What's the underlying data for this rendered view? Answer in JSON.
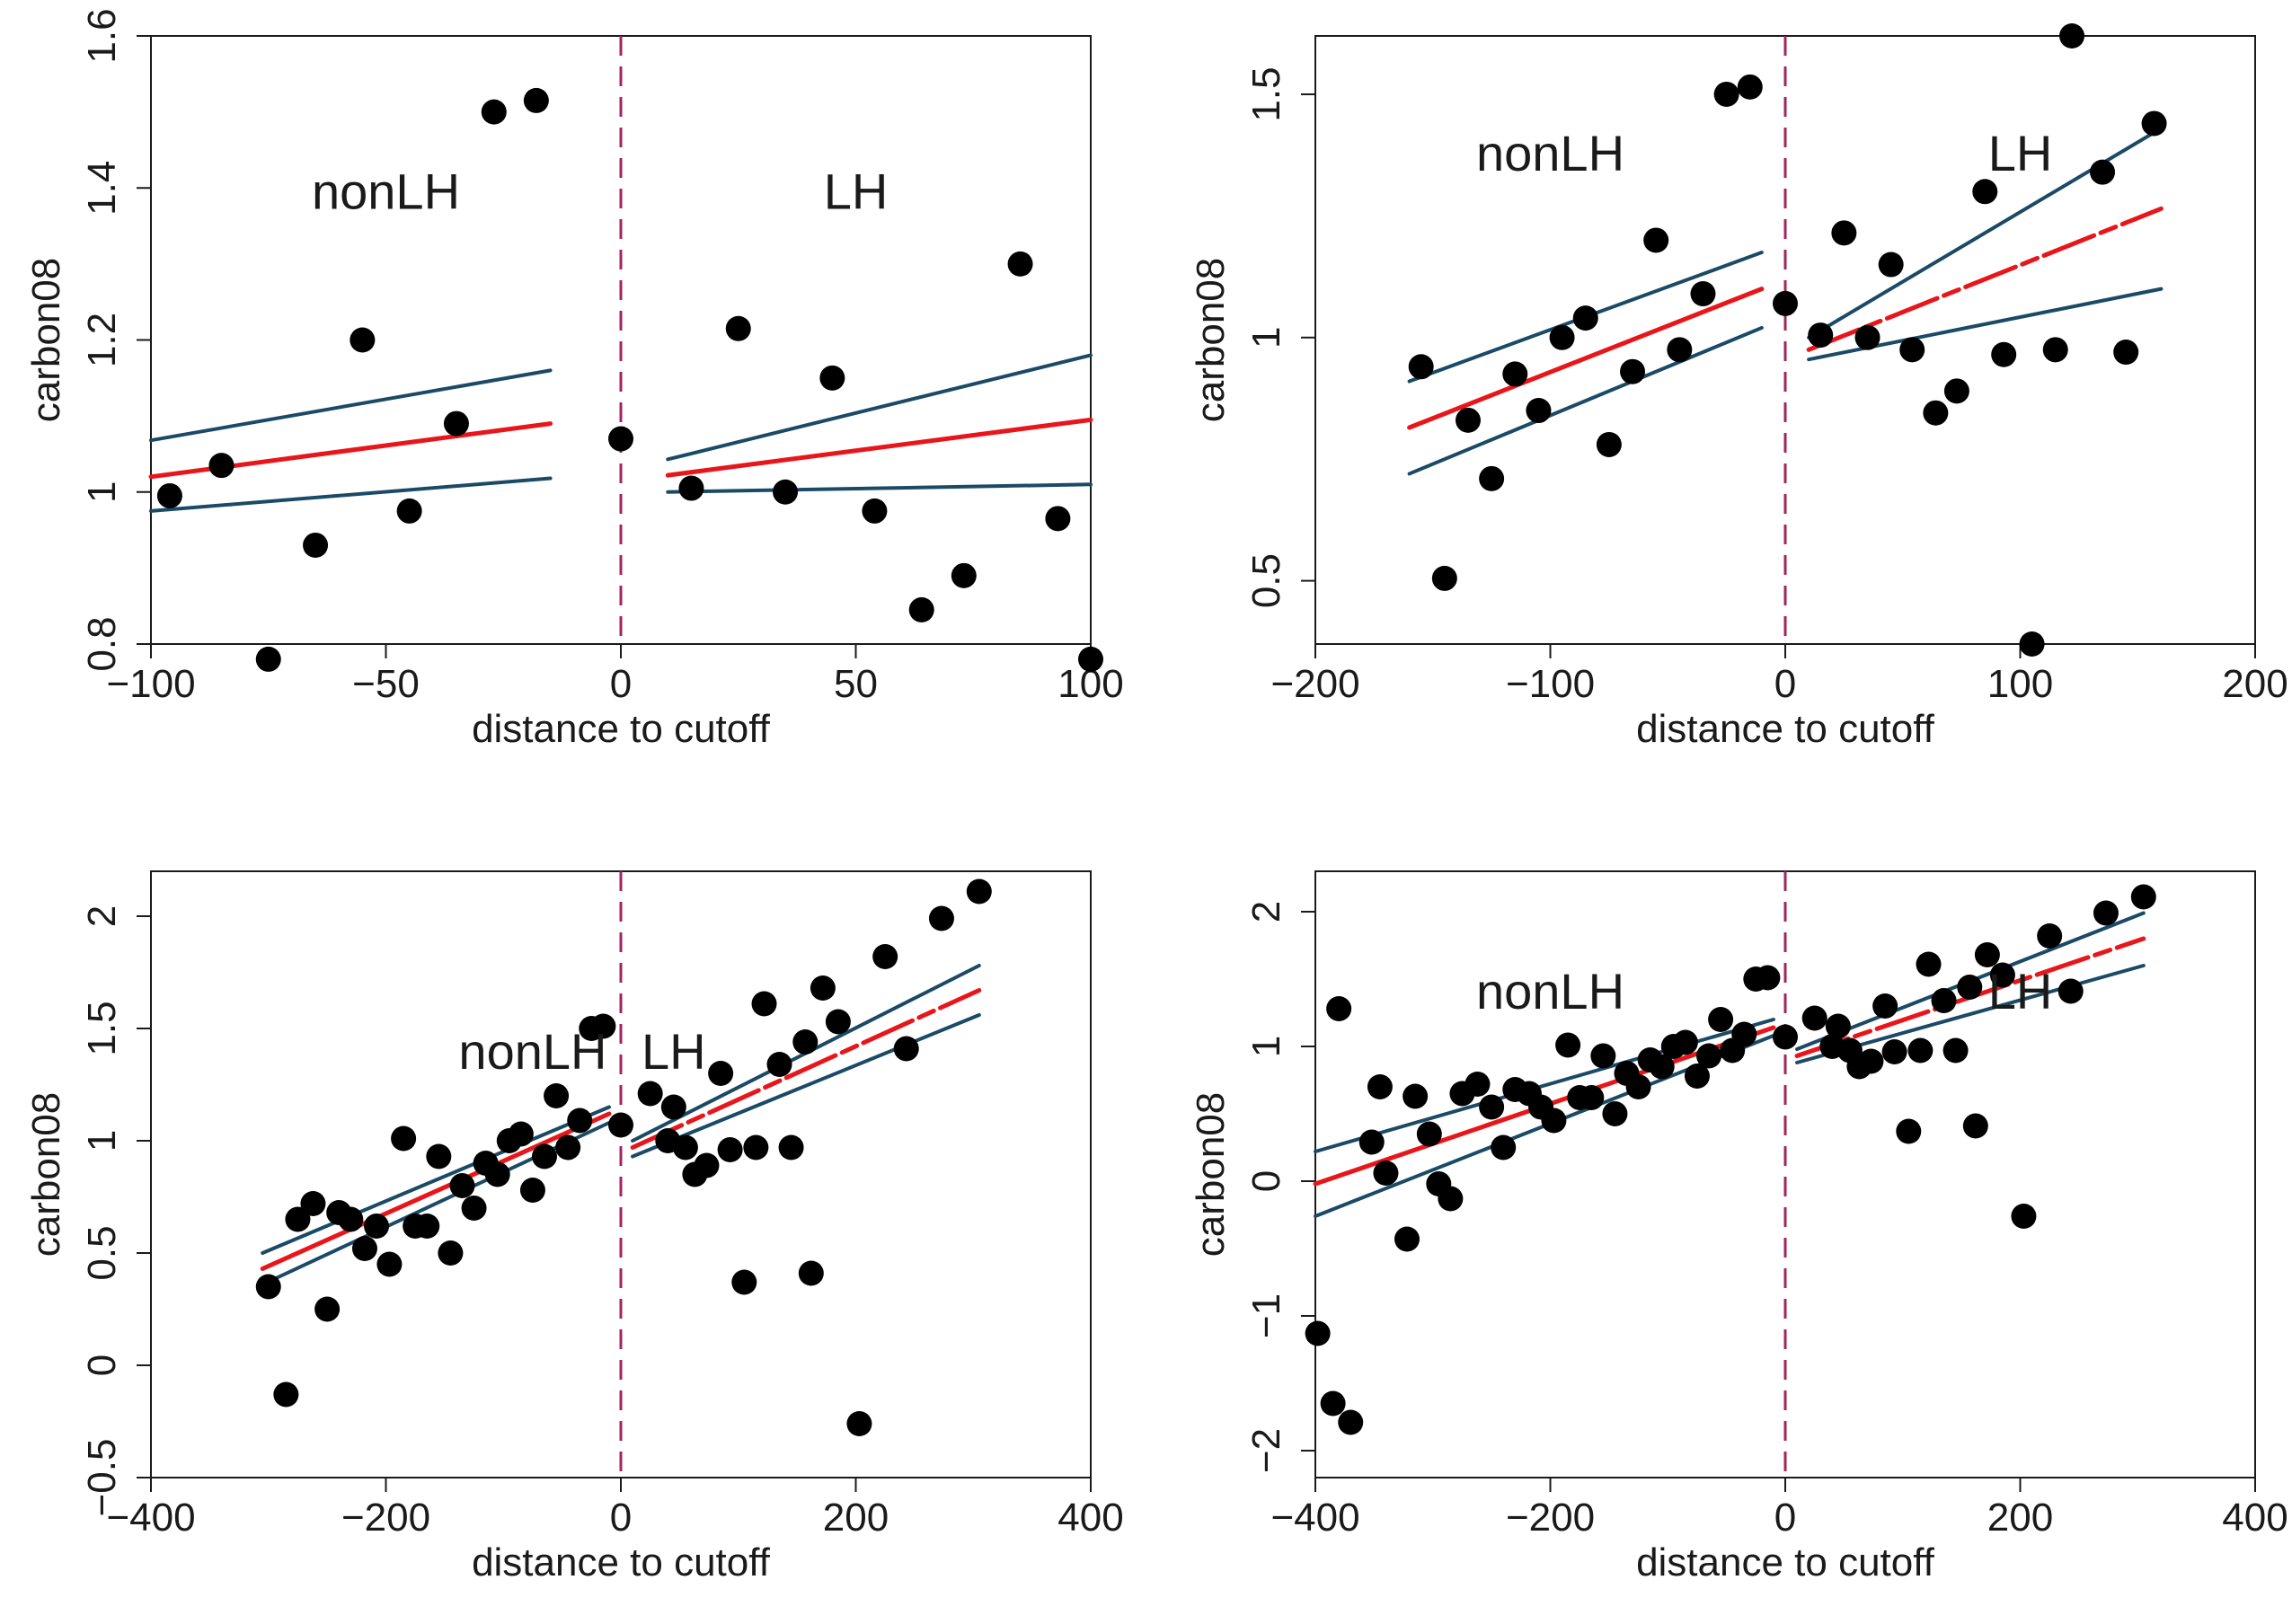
{
  "colors": {
    "fit": "#e8161b",
    "band": "#1b4a66",
    "cutoff": "#a3245a",
    "point": "#000000",
    "axis": "#1a1a1a"
  },
  "chart_data": [
    {
      "type": "scatter",
      "xlabel": "distance to cutoff",
      "ylabel": "carbon08",
      "xlim": [
        -100,
        100
      ],
      "ylim": [
        0.8,
        1.6
      ],
      "xticks": [
        -100,
        -50,
        0,
        50,
        100
      ],
      "xtick_labels": [
        "−100",
        "−50",
        "0",
        "50",
        "100"
      ],
      "yticks": [
        0.8,
        1.0,
        1.2,
        1.4,
        1.6
      ],
      "ytick_labels": [
        "0.8",
        "1",
        "1.2",
        "1.4",
        "1.6"
      ],
      "grid": false,
      "cutoff_x": 0,
      "annotations": [
        {
          "text": "nonLH",
          "x": -50,
          "y": 1.39
        },
        {
          "text": "LH",
          "x": 50,
          "y": 1.39
        }
      ],
      "points": [
        [
          -96,
          0.995
        ],
        [
          -85,
          1.035
        ],
        [
          -75,
          0.78
        ],
        [
          -65,
          0.93
        ],
        [
          -55,
          1.2
        ],
        [
          -45,
          0.975
        ],
        [
          -35,
          1.09
        ],
        [
          -27,
          1.5
        ],
        [
          -18,
          1.515
        ],
        [
          0,
          1.07
        ],
        [
          15,
          1.005
        ],
        [
          25,
          1.215
        ],
        [
          35,
          1.0
        ],
        [
          45,
          1.15
        ],
        [
          54,
          0.975
        ],
        [
          64,
          0.845
        ],
        [
          73,
          0.89
        ],
        [
          85,
          1.3
        ],
        [
          93,
          0.965
        ],
        [
          100,
          0.78
        ]
      ],
      "fits": [
        {
          "x": [
            -100,
            -15
          ],
          "fit": [
            1.02,
            1.09
          ],
          "upper": [
            1.068,
            1.16
          ],
          "lower": [
            0.975,
            1.018
          ]
        },
        {
          "x": [
            10,
            100
          ],
          "fit": [
            1.022,
            1.095
          ],
          "upper": [
            1.043,
            1.18
          ],
          "lower": [
            1.0,
            1.01
          ]
        }
      ]
    },
    {
      "type": "scatter",
      "xlabel": "distance to cutoff",
      "ylabel": "carbon08",
      "xlim": [
        -200,
        200
      ],
      "ylim": [
        0.37,
        1.62
      ],
      "xticks": [
        -200,
        -100,
        0,
        100,
        200
      ],
      "xtick_labels": [
        "−200",
        "−100",
        "0",
        "100",
        "200"
      ],
      "yticks": [
        0.5,
        1.0,
        1.5
      ],
      "ytick_labels": [
        "0.5",
        "1",
        "1.5"
      ],
      "grid": false,
      "cutoff_x": 0,
      "annotations": [
        {
          "text": "nonLH",
          "x": -100,
          "y": 1.37
        },
        {
          "text": "LH",
          "x": 100,
          "y": 1.37
        }
      ],
      "points": [
        [
          -155,
          0.94
        ],
        [
          -145,
          0.505
        ],
        [
          -135,
          0.83
        ],
        [
          -125,
          0.71
        ],
        [
          -115,
          0.925
        ],
        [
          -105,
          0.85
        ],
        [
          -95,
          1.0
        ],
        [
          -85,
          1.04
        ],
        [
          -75,
          0.78
        ],
        [
          -65,
          0.93
        ],
        [
          -55,
          1.2
        ],
        [
          -45,
          0.975
        ],
        [
          -35,
          1.09
        ],
        [
          -25,
          1.5
        ],
        [
          -15,
          1.515
        ],
        [
          0,
          1.07
        ],
        [
          15,
          1.005
        ],
        [
          25,
          1.215
        ],
        [
          35,
          1.0
        ],
        [
          45,
          1.15
        ],
        [
          54,
          0.975
        ],
        [
          64,
          0.845
        ],
        [
          73,
          0.89
        ],
        [
          85,
          1.3
        ],
        [
          93,
          0.965
        ],
        [
          105,
          0.37
        ],
        [
          115,
          0.975
        ],
        [
          122,
          1.62
        ],
        [
          135,
          1.34
        ],
        [
          145,
          0.97
        ],
        [
          157,
          1.44
        ]
      ],
      "fits": [
        {
          "x": [
            -160,
            -10
          ],
          "fit": [
            0.815,
            1.1
          ],
          "upper": [
            0.91,
            1.175
          ],
          "lower": [
            0.72,
            1.02
          ]
        },
        {
          "x": [
            10,
            160
          ],
          "fit": [
            0.975,
            1.265
          ],
          "upper": [
            1.0,
            1.43
          ],
          "lower": [
            0.955,
            1.1
          ]
        }
      ]
    },
    {
      "type": "scatter",
      "xlabel": "distance to cutoff",
      "ylabel": "carbon08",
      "xlim": [
        -400,
        400
      ],
      "ylim": [
        -0.5,
        2.2
      ],
      "xticks": [
        -400,
        -200,
        0,
        200,
        400
      ],
      "xtick_labels": [
        "−400",
        "−200",
        "0",
        "200",
        "400"
      ],
      "yticks": [
        -0.5,
        0,
        0.5,
        1.0,
        1.5,
        2.0
      ],
      "ytick_labels": [
        "−0.5",
        "0",
        "0.5",
        "1",
        "1.5",
        "2"
      ],
      "grid": false,
      "cutoff_x": 0,
      "annotations": [
        {
          "text": "nonLH",
          "x": -75,
          "y": 1.38
        },
        {
          "text": "LH",
          "x": 45,
          "y": 1.38
        }
      ],
      "points": [
        [
          -300,
          0.35
        ],
        [
          -285,
          -0.13
        ],
        [
          -275,
          0.65
        ],
        [
          -262,
          0.72
        ],
        [
          -250,
          0.25
        ],
        [
          -240,
          0.68
        ],
        [
          -230,
          0.65
        ],
        [
          -218,
          0.52
        ],
        [
          -208,
          0.62
        ],
        [
          -197,
          0.45
        ],
        [
          -185,
          1.01
        ],
        [
          -175,
          0.62
        ],
        [
          -165,
          0.62
        ],
        [
          -155,
          0.93
        ],
        [
          -145,
          0.5
        ],
        [
          -135,
          0.8
        ],
        [
          -125,
          0.7
        ],
        [
          -115,
          0.9
        ],
        [
          -105,
          0.85
        ],
        [
          -95,
          1.0
        ],
        [
          -85,
          1.03
        ],
        [
          -75,
          0.78
        ],
        [
          -65,
          0.93
        ],
        [
          -55,
          1.2
        ],
        [
          -45,
          0.97
        ],
        [
          -35,
          1.09
        ],
        [
          -25,
          1.5
        ],
        [
          -15,
          1.51
        ],
        [
          0,
          1.07
        ],
        [
          25,
          1.21
        ],
        [
          40,
          1.0
        ],
        [
          45,
          1.15
        ],
        [
          55,
          0.97
        ],
        [
          63,
          0.85
        ],
        [
          73,
          0.89
        ],
        [
          85,
          1.3
        ],
        [
          93,
          0.96
        ],
        [
          105,
          0.37
        ],
        [
          115,
          0.97
        ],
        [
          122,
          1.61
        ],
        [
          135,
          1.34
        ],
        [
          145,
          0.97
        ],
        [
          157,
          1.44
        ],
        [
          162,
          0.41
        ],
        [
          172,
          1.68
        ],
        [
          185,
          1.53
        ],
        [
          203,
          -0.26
        ],
        [
          225,
          1.82
        ],
        [
          243,
          1.41
        ],
        [
          273,
          1.99
        ],
        [
          305,
          2.11
        ]
      ],
      "fits": [
        {
          "x": [
            -305,
            -10
          ],
          "fit": [
            0.43,
            1.12
          ],
          "upper": [
            0.5,
            1.15
          ],
          "lower": [
            0.36,
            1.08
          ]
        },
        {
          "x": [
            10,
            305
          ],
          "fit": [
            0.97,
            1.67
          ],
          "upper": [
            1.0,
            1.78
          ],
          "lower": [
            0.93,
            1.56
          ]
        }
      ]
    },
    {
      "type": "scatter",
      "xlabel": "distance to cutoff",
      "ylabel": "carbon08",
      "xlim": [
        -400,
        400
      ],
      "ylim": [
        -2.2,
        2.3
      ],
      "xticks": [
        -400,
        -200,
        0,
        200,
        400
      ],
      "xtick_labels": [
        "−400",
        "−200",
        "0",
        "200",
        "400"
      ],
      "yticks": [
        -2,
        -1,
        0,
        1,
        2
      ],
      "ytick_labels": [
        "−2",
        "−1",
        "0",
        "1",
        "2"
      ],
      "grid": false,
      "cutoff_x": 0,
      "annotations": [
        {
          "text": "nonLH",
          "x": -200,
          "y": 1.38
        },
        {
          "text": "LH",
          "x": 200,
          "y": 1.38
        }
      ],
      "points": [
        [
          -398,
          -1.13
        ],
        [
          -385,
          -1.65
        ],
        [
          -380,
          1.28
        ],
        [
          -370,
          -1.79
        ],
        [
          -352,
          0.29
        ],
        [
          -345,
          0.7
        ],
        [
          -340,
          0.06
        ],
        [
          -322,
          -0.43
        ],
        [
          -315,
          0.63
        ],
        [
          -303,
          0.35
        ],
        [
          -295,
          -0.02
        ],
        [
          -285,
          -0.13
        ],
        [
          -275,
          0.65
        ],
        [
          -262,
          0.72
        ],
        [
          -250,
          0.55
        ],
        [
          -240,
          0.25
        ],
        [
          -230,
          0.68
        ],
        [
          -218,
          0.65
        ],
        [
          -208,
          0.55
        ],
        [
          -197,
          0.45
        ],
        [
          -185,
          1.01
        ],
        [
          -175,
          0.62
        ],
        [
          -165,
          0.62
        ],
        [
          -155,
          0.93
        ],
        [
          -145,
          0.5
        ],
        [
          -135,
          0.8
        ],
        [
          -125,
          0.7
        ],
        [
          -115,
          0.9
        ],
        [
          -105,
          0.85
        ],
        [
          -95,
          1.0
        ],
        [
          -85,
          1.03
        ],
        [
          -75,
          0.78
        ],
        [
          -65,
          0.93
        ],
        [
          -55,
          1.2
        ],
        [
          -45,
          0.97
        ],
        [
          -35,
          1.09
        ],
        [
          -25,
          1.5
        ],
        [
          -15,
          1.51
        ],
        [
          0,
          1.07
        ],
        [
          25,
          1.21
        ],
        [
          40,
          1.0
        ],
        [
          45,
          1.15
        ],
        [
          55,
          0.97
        ],
        [
          63,
          0.85
        ],
        [
          73,
          0.89
        ],
        [
          85,
          1.3
        ],
        [
          93,
          0.96
        ],
        [
          105,
          0.37
        ],
        [
          115,
          0.97
        ],
        [
          122,
          1.61
        ],
        [
          135,
          1.34
        ],
        [
          145,
          0.97
        ],
        [
          157,
          1.44
        ],
        [
          162,
          0.41
        ],
        [
          172,
          1.68
        ],
        [
          185,
          1.53
        ],
        [
          203,
          -0.26
        ],
        [
          225,
          1.82
        ],
        [
          243,
          1.41
        ],
        [
          273,
          1.99
        ],
        [
          305,
          2.11
        ]
      ],
      "fits": [
        {
          "x": [
            -400,
            -10
          ],
          "fit": [
            -0.02,
            1.14
          ],
          "upper": [
            0.22,
            1.2
          ],
          "lower": [
            -0.26,
            1.08
          ]
        },
        {
          "x": [
            10,
            305
          ],
          "fit": [
            0.93,
            1.8
          ],
          "upper": [
            0.98,
            1.99
          ],
          "lower": [
            0.88,
            1.6
          ]
        }
      ]
    }
  ]
}
